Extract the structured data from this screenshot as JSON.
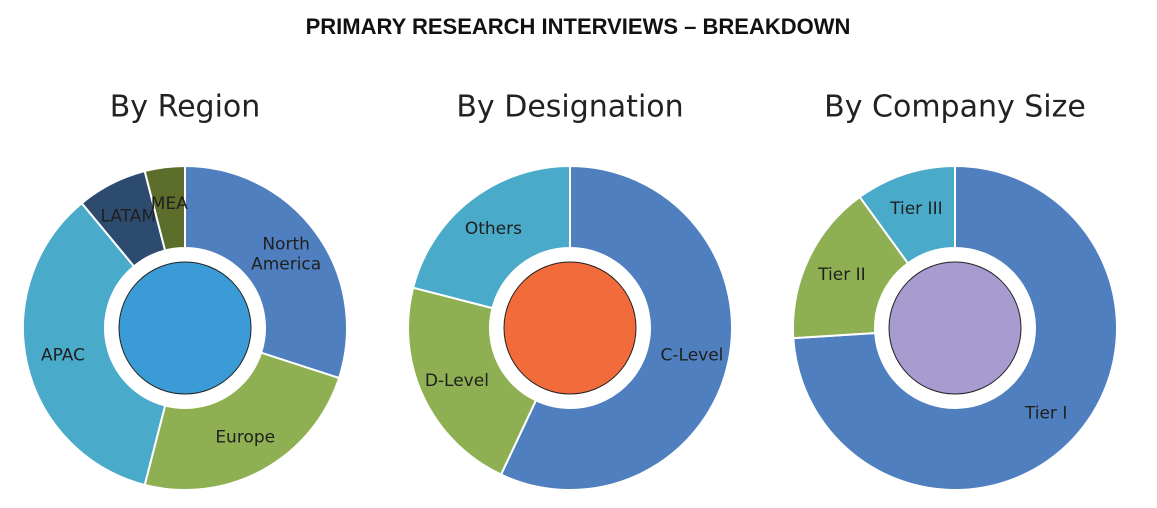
{
  "title": "PRIMARY RESEARCH INTERVIEWS – BREAKDOWN",
  "chart_data": [
    {
      "type": "donut",
      "title": "By Region",
      "categories": [
        "North America",
        "Europe",
        "APAC",
        "LATAM",
        "MEA"
      ],
      "values": [
        30,
        24,
        35,
        7,
        4
      ],
      "colors": [
        "#4f7fbf",
        "#8eb052",
        "#4aaac9",
        "#2d4b6f",
        "#5d6d2c"
      ]
    },
    {
      "type": "donut",
      "title": "By Designation",
      "categories": [
        "C-Level",
        "D-Level",
        "Others"
      ],
      "values": [
        57,
        22,
        21
      ],
      "colors": [
        "#4f7fbf",
        "#8eb052",
        "#4aaac9"
      ]
    },
    {
      "type": "donut",
      "title": "By Company Size",
      "categories": [
        "Tier I",
        "Tier II",
        "Tier III"
      ],
      "values": [
        74,
        16,
        10
      ],
      "colors": [
        "#4f7fbf",
        "#8eb052",
        "#4aaac9"
      ]
    }
  ]
}
